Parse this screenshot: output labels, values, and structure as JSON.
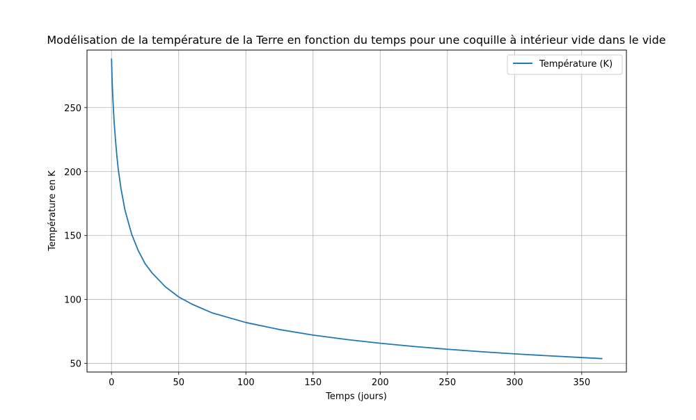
{
  "chart_data": {
    "type": "line",
    "title": "Modélisation de la température de la Terre en fonction du temps pour une coquille à intérieur vide dans le vide",
    "xlabel": "Temps (jours)",
    "ylabel": "Température en K",
    "xlim": [
      -18.25,
      383.25
    ],
    "ylim": [
      43.3,
      295.0
    ],
    "xticks": [
      0,
      50,
      100,
      150,
      200,
      250,
      300,
      350
    ],
    "yticks": [
      50,
      100,
      150,
      200,
      250
    ],
    "grid": true,
    "legend_position": "top-right",
    "series": [
      {
        "name": "Température (K)",
        "color": "#1f77b4",
        "x": [
          0,
          0.5,
          1,
          2,
          3,
          4,
          5,
          7,
          10,
          15,
          20,
          25,
          30,
          40,
          50,
          60,
          75,
          100,
          125,
          150,
          175,
          200,
          225,
          250,
          275,
          300,
          325,
          350,
          365
        ],
        "y": [
          288,
          270,
          257,
          238,
          224,
          212,
          202,
          187,
          170,
          151,
          138,
          128,
          121,
          110,
          102,
          96.3,
          89.5,
          82.0,
          76.5,
          72.2,
          68.7,
          65.8,
          63.3,
          61.1,
          59.2,
          57.5,
          56.0,
          54.6,
          53.8
        ]
      }
    ]
  }
}
